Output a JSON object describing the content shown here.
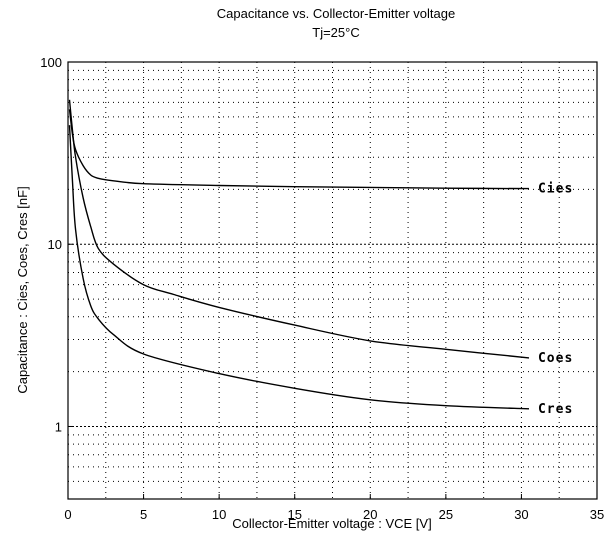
{
  "chart_data": {
    "type": "line",
    "title": "Capacitance vs. Collector-Emitter voltage",
    "subtitle": "Tj=25°C",
    "xlabel": "Collector-Emitter voltage : VCE [V]",
    "ylabel": "Capacitance : Cies, Coes, Cres [nF]",
    "xlim": [
      0,
      35
    ],
    "ylim": [
      0.4,
      100
    ],
    "y_scale": "log",
    "grid": true,
    "x_ticks": [
      "0",
      "5",
      "10",
      "15",
      "20",
      "25",
      "30",
      "35"
    ],
    "y_ticks": [
      "1",
      "10",
      "100"
    ],
    "series": [
      {
        "name": "Cies",
        "x": [
          0.1,
          0.3,
          0.5,
          1,
          1.5,
          2,
          3,
          5,
          10,
          15,
          20,
          25,
          30.5
        ],
        "values": [
          55,
          40,
          33,
          27,
          24,
          23,
          22.3,
          21.5,
          21,
          20.7,
          20.5,
          20.3,
          20.2
        ]
      },
      {
        "name": "Coes",
        "x": [
          0.1,
          0.3,
          0.5,
          1,
          1.5,
          2,
          3,
          5,
          7,
          10,
          15,
          20,
          25,
          30.5
        ],
        "values": [
          62,
          42,
          30,
          18,
          12.5,
          9.5,
          7.8,
          6.0,
          5.3,
          4.5,
          3.6,
          2.95,
          2.65,
          2.38
        ]
      },
      {
        "name": "Cres",
        "x": [
          0.1,
          0.3,
          0.5,
          1,
          1.5,
          2,
          3,
          5,
          10,
          15,
          20,
          25,
          30.5
        ],
        "values": [
          45,
          22,
          12,
          6.5,
          4.6,
          3.9,
          3.2,
          2.5,
          1.95,
          1.62,
          1.4,
          1.3,
          1.25
        ]
      }
    ]
  }
}
